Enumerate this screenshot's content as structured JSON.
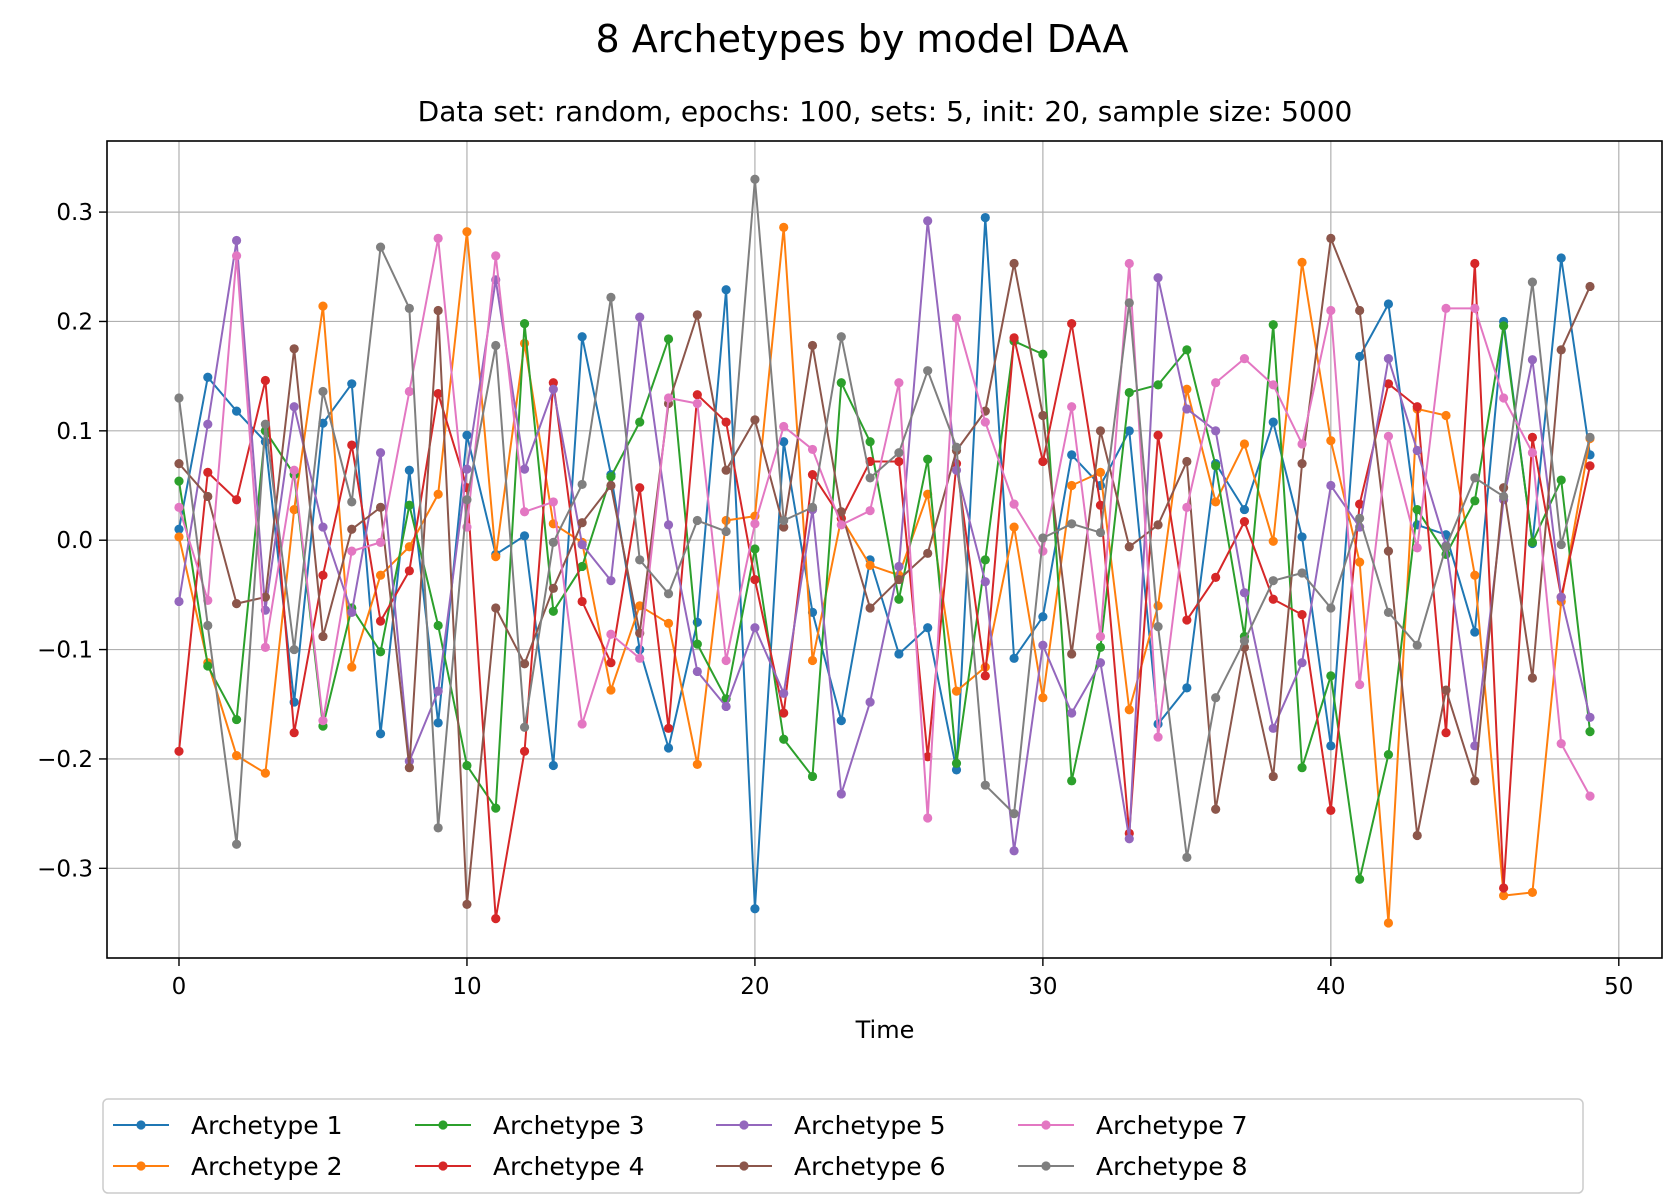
{
  "chart_data": {
    "type": "line",
    "title": "8 Archetypes by model DAA",
    "subtitle": "Data set: random, epochs: 100, sets: 5, init: 20, sample size: 5000",
    "xlabel": "Time",
    "ylabel": "",
    "xlim": [
      -2.5,
      51.5
    ],
    "ylim": [
      -0.382,
      0.365
    ],
    "xticks": [
      0,
      10,
      20,
      30,
      40,
      50
    ],
    "xtick_labels": [
      "0",
      "10",
      "20",
      "30",
      "40",
      "50"
    ],
    "yticks": [
      -0.3,
      -0.2,
      -0.1,
      0.0,
      0.1,
      0.2,
      0.3
    ],
    "ytick_labels": [
      "−0.3",
      "−0.2",
      "−0.1",
      "0.0",
      "0.1",
      "0.2",
      "0.3"
    ],
    "grid": true,
    "legend_position": "bottom, outside plot, 5 columns",
    "x": [
      0,
      1,
      2,
      3,
      4,
      5,
      6,
      7,
      8,
      9,
      10,
      11,
      12,
      13,
      14,
      15,
      16,
      17,
      18,
      19,
      20,
      21,
      22,
      23,
      24,
      25,
      26,
      27,
      28,
      29,
      30,
      31,
      32,
      33,
      34,
      35,
      36,
      37,
      38,
      39,
      40,
      41,
      42,
      43,
      44,
      45,
      46,
      47,
      48,
      49
    ],
    "series": [
      {
        "name": "Archetype 1",
        "color": "#1f77b4",
        "values": [
          0.01,
          0.149,
          0.118,
          0.09,
          -0.148,
          0.107,
          0.143,
          -0.177,
          0.064,
          -0.167,
          0.096,
          -0.013,
          0.004,
          -0.206,
          0.186,
          0.06,
          -0.1,
          -0.19,
          -0.075,
          0.229,
          -0.337,
          0.09,
          -0.066,
          -0.165,
          -0.018,
          -0.104,
          -0.08,
          -0.21,
          0.295,
          -0.108,
          -0.07,
          0.078,
          0.05,
          0.1,
          -0.168,
          -0.135,
          0.07,
          0.028,
          0.108,
          0.003,
          -0.188,
          0.168,
          0.216,
          0.014,
          0.005,
          -0.084,
          0.2,
          -0.003,
          0.258,
          0.078
        ]
      },
      {
        "name": "Archetype 2",
        "color": "#ff7f0e",
        "values": [
          0.003,
          -0.112,
          -0.197,
          -0.213,
          0.028,
          0.214,
          -0.116,
          -0.032,
          -0.006,
          0.042,
          0.282,
          -0.015,
          0.18,
          0.015,
          -0.002,
          -0.137,
          -0.06,
          -0.076,
          -0.205,
          0.018,
          0.022,
          0.286,
          -0.11,
          0.02,
          -0.023,
          -0.032,
          0.042,
          -0.138,
          -0.116,
          0.012,
          -0.144,
          0.05,
          0.062,
          -0.155,
          -0.06,
          0.138,
          0.035,
          0.088,
          -0.001,
          0.254,
          0.091,
          -0.02,
          -0.35,
          0.12,
          0.114,
          -0.032,
          -0.325,
          -0.322,
          -0.056,
          0.093
        ]
      },
      {
        "name": "Archetype 3",
        "color": "#2ca02c",
        "values": [
          0.054,
          -0.115,
          -0.164,
          0.1,
          0.06,
          -0.17,
          -0.062,
          -0.102,
          0.032,
          -0.078,
          -0.206,
          -0.245,
          0.198,
          -0.065,
          -0.024,
          0.058,
          0.108,
          0.184,
          -0.095,
          -0.145,
          -0.008,
          -0.182,
          -0.216,
          0.144,
          0.09,
          -0.054,
          0.074,
          -0.204,
          -0.018,
          0.182,
          0.17,
          -0.22,
          -0.098,
          0.135,
          0.142,
          0.174,
          0.068,
          -0.088,
          0.197,
          -0.208,
          -0.124,
          -0.31,
          -0.196,
          0.028,
          -0.013,
          0.036,
          0.196,
          -0.002,
          0.055,
          -0.175
        ]
      },
      {
        "name": "Archetype 4",
        "color": "#d62728",
        "values": [
          -0.193,
          0.062,
          0.037,
          0.146,
          -0.176,
          -0.032,
          0.087,
          -0.074,
          -0.028,
          0.134,
          0.048,
          -0.346,
          -0.193,
          0.144,
          -0.056,
          -0.112,
          0.048,
          -0.172,
          0.133,
          0.108,
          -0.036,
          -0.158,
          0.06,
          0.02,
          0.072,
          0.072,
          -0.198,
          0.07,
          -0.124,
          0.185,
          0.072,
          0.198,
          0.032,
          -0.268,
          0.096,
          -0.073,
          -0.034,
          0.017,
          -0.054,
          -0.068,
          -0.247,
          0.033,
          0.143,
          0.122,
          -0.176,
          0.253,
          -0.318,
          0.094,
          -0.052,
          0.068
        ]
      },
      {
        "name": "Archetype 5",
        "color": "#9467bd",
        "values": [
          -0.056,
          0.106,
          0.274,
          -0.064,
          0.122,
          0.012,
          -0.066,
          0.08,
          -0.202,
          -0.138,
          0.065,
          0.238,
          0.065,
          0.138,
          -0.004,
          -0.037,
          0.204,
          0.014,
          -0.12,
          -0.152,
          -0.08,
          -0.14,
          0.028,
          -0.232,
          -0.148,
          -0.024,
          0.292,
          0.064,
          -0.038,
          -0.284,
          -0.096,
          -0.158,
          -0.112,
          -0.273,
          0.24,
          0.12,
          0.1,
          -0.048,
          -0.172,
          -0.112,
          0.05,
          0.012,
          0.166,
          0.082,
          -0.005,
          -0.188,
          0.037,
          0.165,
          -0.052,
          -0.162
        ]
      },
      {
        "name": "Archetype 6",
        "color": "#8c564b",
        "values": [
          0.07,
          0.04,
          -0.058,
          -0.052,
          0.175,
          -0.088,
          0.01,
          0.03,
          -0.208,
          0.21,
          -0.333,
          -0.062,
          -0.113,
          -0.044,
          0.016,
          0.05,
          -0.085,
          0.125,
          0.206,
          0.064,
          0.11,
          0.012,
          0.178,
          0.026,
          -0.062,
          -0.036,
          -0.012,
          0.082,
          0.118,
          0.253,
          0.114,
          -0.104,
          0.1,
          -0.006,
          0.014,
          0.072,
          -0.246,
          -0.098,
          -0.216,
          0.07,
          0.276,
          0.21,
          -0.01,
          -0.27,
          -0.137,
          -0.22,
          0.048,
          -0.126,
          0.174,
          0.232
        ]
      },
      {
        "name": "Archetype 7",
        "color": "#e377c2",
        "values": [
          0.03,
          -0.055,
          0.26,
          -0.098,
          0.064,
          -0.165,
          -0.01,
          -0.002,
          0.136,
          0.276,
          0.012,
          0.26,
          0.026,
          0.035,
          -0.168,
          -0.086,
          -0.108,
          0.13,
          0.125,
          -0.11,
          0.015,
          0.104,
          0.083,
          0.014,
          0.027,
          0.144,
          -0.254,
          0.203,
          0.108,
          0.033,
          -0.01,
          0.122,
          -0.088,
          0.253,
          -0.18,
          0.03,
          0.144,
          0.166,
          0.142,
          0.088,
          0.21,
          -0.132,
          0.095,
          -0.007,
          0.212,
          0.212,
          0.13,
          0.08,
          -0.186,
          -0.234
        ]
      },
      {
        "name": "Archetype 8",
        "color": "#7f7f7f",
        "values": [
          0.13,
          -0.078,
          -0.278,
          0.106,
          -0.1,
          0.136,
          0.035,
          0.268,
          0.212,
          -0.263,
          0.037,
          0.178,
          -0.171,
          -0.002,
          0.051,
          0.222,
          -0.018,
          -0.049,
          0.018,
          0.008,
          0.33,
          0.018,
          0.03,
          0.186,
          0.057,
          0.08,
          0.155,
          0.085,
          -0.224,
          -0.25,
          0.002,
          0.015,
          0.007,
          0.217,
          -0.079,
          -0.29,
          -0.144,
          -0.092,
          -0.037,
          -0.03,
          -0.062,
          0.02,
          -0.066,
          -0.096,
          -0.006,
          0.057,
          0.04,
          0.236,
          -0.004,
          0.094
        ]
      }
    ]
  }
}
